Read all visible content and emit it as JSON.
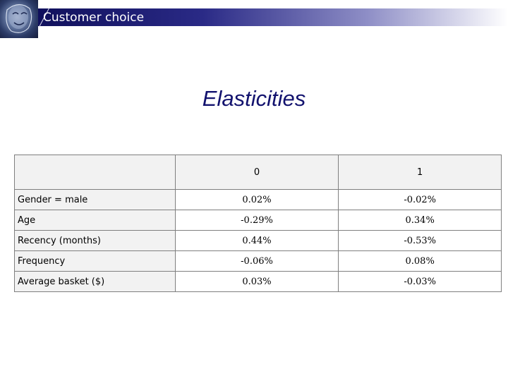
{
  "header": {
    "title": "Customer choice",
    "logo_icon": "portrait-logo-icon"
  },
  "slide": {
    "title": "Elasticities"
  },
  "table": {
    "corner": "",
    "columns": [
      "0",
      "1"
    ],
    "rows": [
      {
        "label": "Gender = male",
        "values": [
          "0.02%",
          "-0.02%"
        ]
      },
      {
        "label": "Age",
        "values": [
          "-0.29%",
          "0.34%"
        ]
      },
      {
        "label": "Recency (months)",
        "values": [
          "0.44%",
          "-0.53%"
        ]
      },
      {
        "label": "Frequency",
        "values": [
          "-0.06%",
          "0.08%"
        ]
      },
      {
        "label": "Average basket ($)",
        "values": [
          "0.03%",
          "-0.03%"
        ]
      }
    ]
  },
  "colors": {
    "title": "#12126e",
    "header_dark": "#10105c",
    "table_border": "#7f7f7f",
    "label_fill": "#f2f2f2"
  }
}
